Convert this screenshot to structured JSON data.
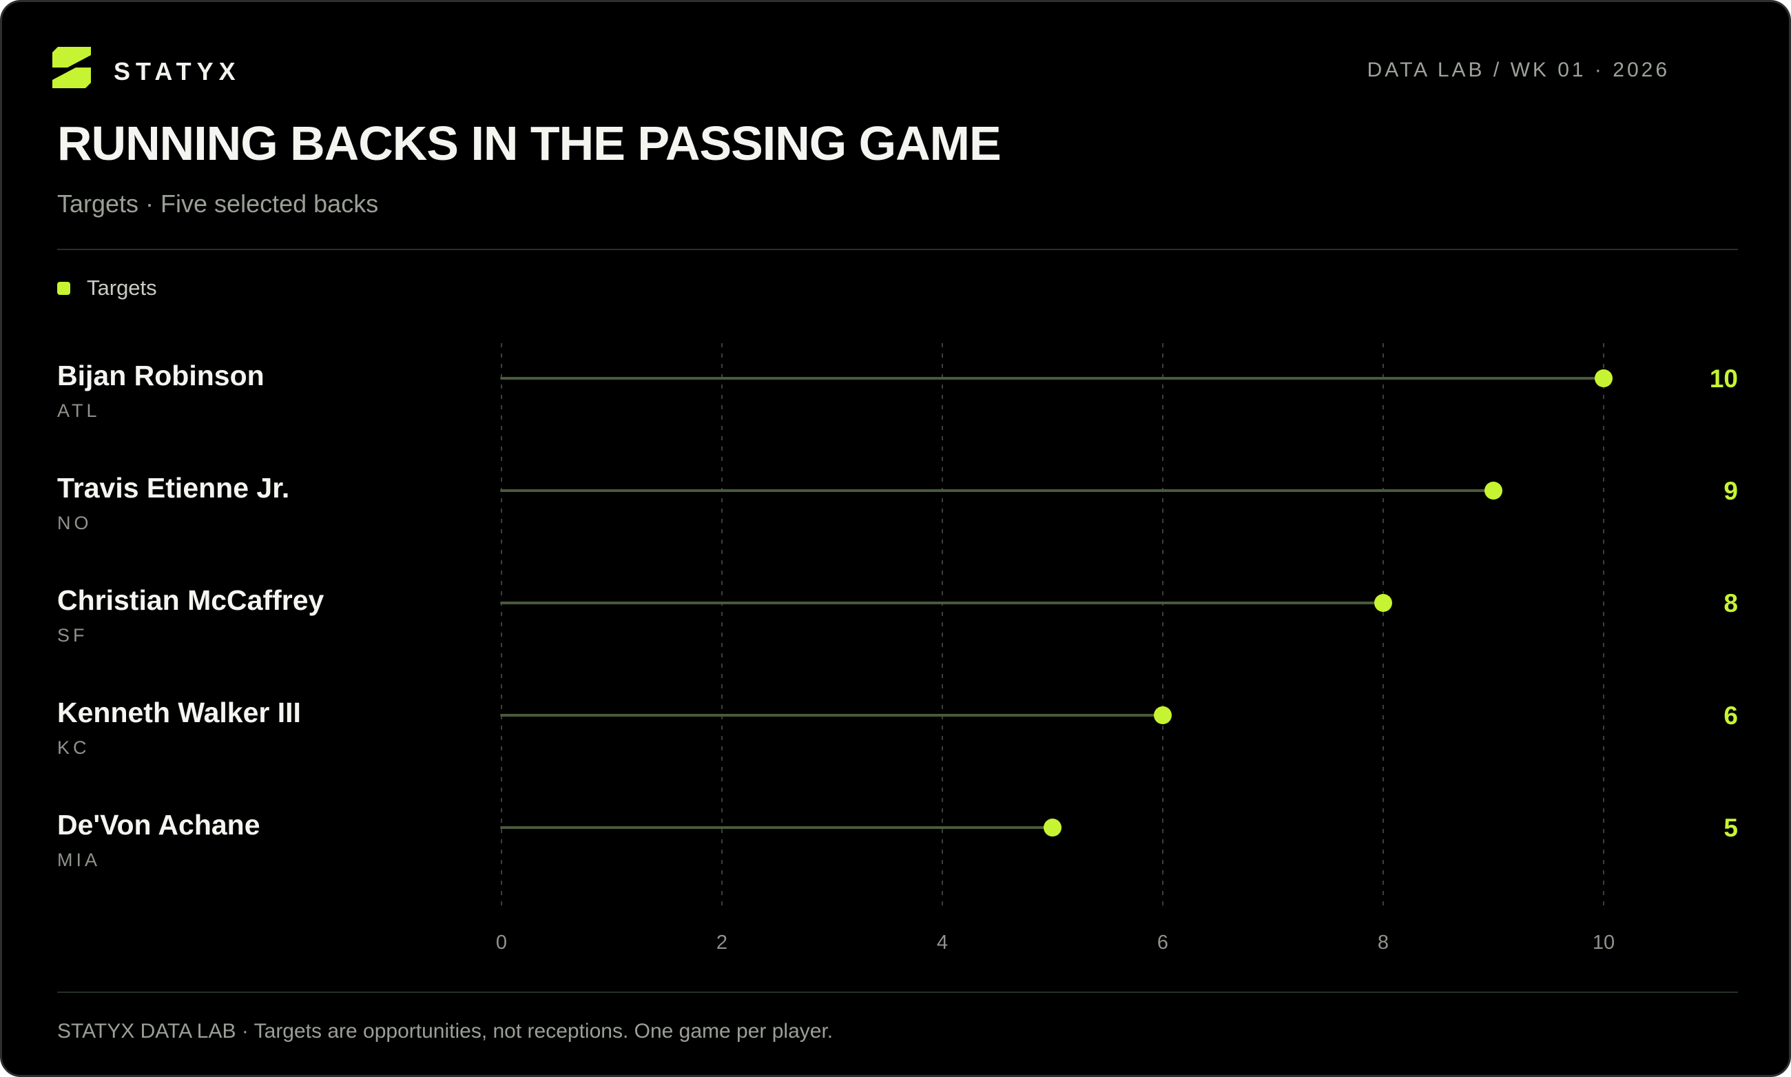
{
  "brand": {
    "name": "STATYX",
    "edition": "DATA LAB / WK 01 · 2026",
    "logo_icon": "bolt-logo-icon"
  },
  "header": {
    "title": "RUNNING BACKS IN THE PASSING GAME",
    "subtitle": "Targets · Five selected backs"
  },
  "legend": {
    "label": "Targets"
  },
  "colors": {
    "background": "#000000",
    "accent": "#c6f432",
    "stem": "#4a5a3c",
    "grid": "#3a3f38",
    "text": "#f4f4f0",
    "muted": "#9a9f97"
  },
  "chart_data": {
    "type": "lollipop",
    "orientation": "horizontal",
    "series": [
      {
        "name": "Targets",
        "values": [
          10,
          9,
          8,
          6,
          5
        ]
      }
    ],
    "categories": [
      "Bijan Robinson",
      "Travis Etienne Jr.",
      "Christian McCaffrey",
      "Kenneth Walker III",
      "De'Von Achane"
    ],
    "teams": [
      "ATL",
      "NO",
      "SF",
      "KC",
      "MIA"
    ],
    "value_labels": [
      "10",
      "9",
      "8",
      "6",
      "5"
    ],
    "xlim": [
      0,
      10
    ],
    "xticks": [
      0,
      2,
      4,
      6,
      8,
      10
    ],
    "xtick_labels": [
      "0",
      "2",
      "4",
      "6",
      "8",
      "10"
    ],
    "grid": true,
    "legend_position": "top-left"
  },
  "footer": {
    "note": "STATYX DATA LAB · Targets are opportunities, not receptions. One game per player."
  }
}
